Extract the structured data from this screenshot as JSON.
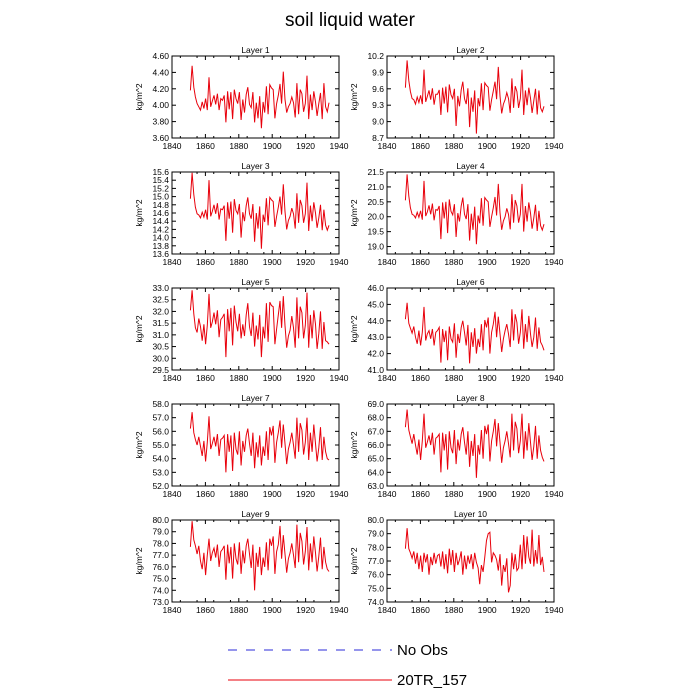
{
  "title": "soil liquid water",
  "colors": {
    "model": "#e8000b",
    "obs": "#2b2bd8",
    "axis": "#000000"
  },
  "legend": [
    {
      "label": "No Obs",
      "style": "dashed",
      "color": "#2b2bd8"
    },
    {
      "label": "20TR_157",
      "style": "solid",
      "color": "#e8000b"
    }
  ],
  "chart_data": [
    {
      "type": "line",
      "title": "Layer 1",
      "ylabel": "kg/m^2",
      "xlim": [
        1840,
        1940
      ],
      "xticks": [
        "1840",
        "1860",
        "1880",
        "1900",
        "1920",
        "1940"
      ],
      "ylim": [
        3.6,
        4.6
      ],
      "yticks": [
        "3.60",
        "3.80",
        "4.00",
        "4.20",
        "4.40",
        "4.60"
      ],
      "y_start": 4.18,
      "values": [
        4.18,
        4.48,
        4.22,
        4.1,
        4.02,
        3.98,
        3.94,
        4.04,
        3.96,
        4.08,
        3.94,
        4.34,
        3.98,
        4.05,
        4.12,
        4.01,
        4.14,
        3.94,
        4.08,
        4.06,
        4.12,
        3.79,
        4.17,
        3.95,
        4.16,
        3.83,
        4.19,
        4.08,
        4.02,
        4.16,
        3.82,
        4.07,
        3.91,
        4.13,
        4.22,
        4.01,
        3.97,
        4.16,
        3.79,
        4.03,
        3.84,
        4.11,
        3.72,
        4.04,
        3.91,
        4.23,
        3.89,
        4.25,
        4.21,
        4.19,
        3.84,
        4.02,
        4.12,
        4.26,
        4.02,
        4.41,
        4.07,
        3.91,
        3.98,
        4.02,
        4.1,
        4.03,
        3.85,
        4.27,
        3.89,
        4.19,
        4.14,
        3.92,
        4.02,
        4.36,
        3.83,
        4.13,
        3.94,
        4.17,
        4.04,
        3.87,
        4.02,
        4.15,
        3.83,
        4.27,
        3.98,
        3.92,
        4.03
      ]
    },
    {
      "type": "line",
      "title": "Layer 2",
      "ylabel": "kg/m^2",
      "xlim": [
        1840,
        1940
      ],
      "xticks": [
        "1840",
        "1860",
        "1880",
        "1900",
        "1920",
        "1940"
      ],
      "ylim": [
        8.7,
        10.2
      ],
      "yticks": [
        "8.7",
        "9.0",
        "9.3",
        "9.6",
        "9.9",
        "10.2"
      ],
      "y_start": 9.62,
      "values": [
        9.62,
        10.12,
        9.75,
        9.55,
        9.42,
        9.4,
        9.32,
        9.45,
        9.35,
        9.48,
        9.32,
        9.95,
        9.36,
        9.46,
        9.57,
        9.4,
        9.61,
        9.31,
        9.5,
        9.5,
        9.58,
        9.12,
        9.62,
        9.33,
        9.64,
        9.17,
        9.68,
        9.49,
        9.42,
        9.6,
        8.92,
        9.47,
        9.28,
        9.58,
        9.73,
        9.42,
        9.32,
        9.61,
        8.9,
        9.44,
        9.18,
        9.57,
        8.78,
        9.43,
        9.28,
        9.7,
        9.21,
        9.71,
        9.66,
        9.63,
        9.2,
        9.4,
        9.56,
        9.73,
        9.41,
        10.0,
        9.47,
        9.15,
        9.32,
        9.4,
        9.53,
        9.42,
        9.16,
        9.79,
        9.25,
        9.65,
        9.55,
        9.25,
        9.42,
        9.95,
        9.12,
        9.57,
        9.3,
        9.62,
        9.43,
        9.16,
        9.38,
        9.6,
        9.13,
        9.57,
        9.25,
        9.18,
        9.28
      ]
    },
    {
      "type": "line",
      "title": "Layer 3",
      "ylabel": "kg/m^2",
      "xlim": [
        1840,
        1940
      ],
      "xticks": [
        "1840",
        "1860",
        "1880",
        "1900",
        "1920",
        "1940"
      ],
      "ylim": [
        13.6,
        15.6
      ],
      "yticks": [
        "13.6",
        "13.8",
        "14.0",
        "14.2",
        "14.4",
        "14.6",
        "14.8",
        "15.0",
        "15.2",
        "15.4",
        "15.6"
      ],
      "y_start": 14.95,
      "values": [
        14.95,
        15.58,
        15.05,
        14.74,
        14.58,
        14.55,
        14.48,
        14.62,
        14.5,
        14.68,
        14.44,
        15.4,
        14.52,
        14.64,
        14.8,
        14.58,
        14.84,
        14.44,
        14.7,
        14.68,
        14.78,
        13.92,
        14.86,
        14.46,
        14.88,
        14.12,
        14.94,
        14.66,
        14.58,
        14.82,
        14.0,
        14.62,
        14.4,
        14.78,
        14.98,
        14.58,
        14.46,
        14.82,
        13.9,
        14.6,
        14.22,
        14.76,
        13.73,
        14.56,
        14.38,
        14.96,
        14.3,
        14.98,
        14.92,
        14.88,
        14.26,
        14.52,
        14.74,
        15.0,
        14.56,
        15.3,
        14.64,
        14.2,
        14.42,
        14.52,
        14.72,
        14.58,
        14.22,
        15.08,
        14.36,
        14.92,
        14.78,
        14.36,
        14.58,
        15.34,
        14.16,
        14.78,
        14.4,
        14.86,
        14.6,
        14.24,
        14.48,
        14.8,
        14.18,
        14.68,
        14.3,
        14.18,
        14.3
      ]
    },
    {
      "type": "line",
      "title": "Layer 4",
      "ylabel": "kg/m^2",
      "xlim": [
        1840,
        1940
      ],
      "xticks": [
        "1840",
        "1860",
        "1880",
        "1900",
        "1920",
        "1940"
      ],
      "ylim": [
        18.75,
        21.5
      ],
      "yticks": [
        "19.0",
        "19.5",
        "20.0",
        "20.5",
        "21.0",
        "21.5"
      ],
      "y_start": 20.55,
      "values": [
        20.55,
        21.42,
        20.7,
        20.3,
        20.08,
        20.05,
        19.96,
        20.15,
        19.98,
        20.2,
        19.9,
        21.2,
        20.02,
        20.16,
        20.38,
        20.08,
        20.44,
        19.88,
        20.24,
        20.22,
        20.36,
        19.25,
        20.48,
        19.94,
        20.5,
        19.45,
        20.58,
        20.18,
        20.06,
        20.42,
        19.32,
        20.12,
        19.84,
        20.36,
        20.64,
        20.08,
        19.92,
        20.42,
        19.2,
        20.1,
        19.56,
        20.34,
        19.08,
        20.04,
        19.78,
        20.62,
        19.7,
        20.64,
        20.56,
        20.5,
        19.66,
        20.0,
        20.3,
        20.66,
        20.04,
        21.1,
        20.14,
        19.56,
        19.86,
        20.0,
        20.28,
        20.08,
        19.58,
        20.76,
        19.8,
        20.56,
        20.36,
        19.8,
        20.08,
        21.1,
        19.5,
        20.36,
        19.84,
        20.48,
        20.12,
        19.6,
        19.96,
        20.4,
        19.52,
        20.2,
        19.7,
        19.55,
        19.75
      ]
    },
    {
      "type": "line",
      "title": "Layer 5",
      "ylabel": "kg/m^2",
      "xlim": [
        1840,
        1940
      ],
      "xticks": [
        "1840",
        "1860",
        "1880",
        "1900",
        "1920",
        "1940"
      ],
      "ylim": [
        29.5,
        33.0
      ],
      "yticks": [
        "29.5",
        "30.0",
        "30.5",
        "31.0",
        "31.5",
        "32.0",
        "32.5",
        "33.0"
      ],
      "y_start": 32.05,
      "values": [
        32.05,
        32.9,
        31.9,
        31.3,
        31.1,
        31.7,
        31.35,
        30.75,
        31.45,
        30.6,
        31.4,
        32.75,
        31.3,
        31.55,
        31.95,
        31.45,
        32.05,
        30.9,
        31.65,
        31.75,
        31.9,
        30.05,
        32.1,
        31.15,
        32.15,
        30.55,
        32.25,
        31.55,
        31.15,
        31.9,
        30.85,
        31.45,
        30.95,
        31.85,
        32.35,
        31.35,
        30.95,
        31.95,
        30.5,
        31.4,
        30.8,
        31.85,
        30.05,
        31.35,
        30.85,
        32.35,
        30.7,
        32.4,
        32.25,
        32.2,
        30.6,
        31.25,
        31.85,
        32.45,
        31.3,
        32.65,
        31.4,
        30.45,
        30.95,
        31.2,
        31.8,
        31.3,
        30.45,
        32.6,
        30.85,
        32.2,
        31.95,
        30.85,
        31.4,
        32.8,
        30.45,
        31.85,
        30.85,
        32.05,
        31.45,
        30.4,
        31.05,
        32.0,
        30.4,
        31.55,
        30.75,
        30.7,
        30.6
      ]
    },
    {
      "type": "line",
      "title": "Layer 6",
      "ylabel": "kg/m^2",
      "xlim": [
        1840,
        1940
      ],
      "xticks": [
        "1840",
        "1860",
        "1880",
        "1900",
        "1920",
        "1940"
      ],
      "ylim": [
        41.0,
        46.0
      ],
      "yticks": [
        "41.0",
        "42.0",
        "43.0",
        "44.0",
        "45.0",
        "46.0"
      ],
      "y_start": 44.1,
      "values": [
        44.1,
        45.1,
        43.85,
        43.55,
        43.25,
        43.65,
        43.0,
        42.6,
        43.4,
        42.5,
        43.3,
        44.85,
        42.8,
        43.2,
        43.4,
        42.9,
        43.5,
        42.5,
        43.3,
        43.4,
        43.6,
        41.45,
        43.5,
        42.7,
        43.4,
        41.6,
        43.65,
        42.9,
        42.7,
        43.85,
        41.75,
        43.2,
        42.65,
        43.6,
        44.0,
        43.3,
        42.5,
        43.75,
        41.4,
        43.3,
        42.4,
        43.55,
        42.0,
        42.9,
        42.4,
        43.8,
        42.2,
        44.05,
        43.6,
        44.2,
        42.0,
        43.3,
        43.8,
        44.55,
        43.0,
        44.25,
        43.2,
        42.1,
        42.9,
        43.4,
        43.8,
        43.2,
        42.4,
        44.7,
        42.8,
        44.4,
        43.9,
        42.6,
        43.3,
        44.7,
        42.3,
        43.8,
        42.7,
        44.3,
        43.2,
        42.4,
        43.0,
        44.2,
        42.3,
        43.6,
        42.7,
        42.5,
        42.2
      ]
    },
    {
      "type": "line",
      "title": "Layer 7",
      "ylabel": "kg/m^2",
      "xlim": [
        1840,
        1940
      ],
      "xticks": [
        "1840",
        "1860",
        "1880",
        "1900",
        "1920",
        "1940"
      ],
      "ylim": [
        52.0,
        58.0
      ],
      "yticks": [
        "52.0",
        "53.0",
        "54.0",
        "55.0",
        "56.0",
        "57.0",
        "58.0"
      ],
      "y_start": 56.2,
      "values": [
        56.2,
        57.4,
        55.9,
        55.4,
        55.0,
        55.6,
        54.9,
        54.2,
        55.3,
        53.8,
        55.2,
        57.1,
        54.7,
        55.1,
        55.6,
        54.9,
        55.8,
        54.2,
        55.4,
        55.5,
        55.7,
        53.0,
        55.8,
        54.5,
        55.7,
        53.1,
        55.9,
        54.7,
        54.3,
        56.0,
        53.5,
        55.3,
        54.5,
        55.7,
        56.2,
        55.1,
        54.2,
        55.9,
        53.3,
        55.2,
        54.1,
        55.7,
        53.5,
        54.9,
        54.2,
        56.0,
        53.9,
        56.3,
        55.7,
        56.4,
        53.7,
        55.2,
        55.9,
        56.8,
        54.8,
        56.5,
        55.1,
        53.6,
        54.7,
        55.2,
        55.9,
        55.0,
        54.0,
        57.0,
        54.5,
        56.6,
        56.1,
        54.3,
        55.2,
        57.0,
        53.9,
        55.9,
        54.5,
        56.5,
        55.1,
        53.8,
        54.8,
        56.3,
        53.9,
        55.6,
        54.5,
        54.0,
        53.9
      ]
    },
    {
      "type": "line",
      "title": "Layer 8",
      "ylabel": "kg/m^2",
      "xlim": [
        1840,
        1940
      ],
      "xticks": [
        "1840",
        "1860",
        "1880",
        "1900",
        "1920",
        "1940"
      ],
      "ylim": [
        63.0,
        69.0
      ],
      "yticks": [
        "63.0",
        "64.0",
        "65.0",
        "66.0",
        "67.0",
        "68.0",
        "69.0"
      ],
      "y_start": 67.3,
      "values": [
        67.3,
        68.6,
        67.1,
        66.6,
        66.1,
        66.8,
        66.0,
        65.3,
        66.4,
        64.9,
        66.3,
        68.3,
        65.8,
        66.2,
        66.7,
        66.0,
        66.9,
        65.3,
        66.5,
        66.6,
        66.8,
        64.0,
        66.9,
        65.6,
        66.8,
        64.2,
        67.0,
        65.8,
        65.4,
        67.1,
        64.6,
        66.4,
        65.6,
        66.8,
        67.3,
        66.2,
        65.3,
        67.0,
        64.4,
        66.3,
        65.2,
        66.8,
        63.6,
        66.0,
        65.3,
        67.1,
        65.0,
        67.4,
        66.8,
        67.5,
        64.8,
        66.3,
        67.0,
        67.9,
        65.9,
        67.6,
        66.2,
        64.7,
        65.8,
        66.3,
        67.0,
        66.1,
        65.1,
        68.3,
        65.6,
        67.7,
        67.2,
        65.4,
        66.3,
        68.3,
        65.0,
        67.0,
        65.6,
        67.6,
        66.2,
        64.9,
        65.9,
        67.4,
        65.0,
        66.7,
        65.6,
        65.1,
        64.8
      ]
    },
    {
      "type": "line",
      "title": "Layer 9",
      "ylabel": "kg/m^2",
      "xlim": [
        1840,
        1940
      ],
      "xticks": [
        "1840",
        "1860",
        "1880",
        "1900",
        "1920",
        "1940"
      ],
      "ylim": [
        73.0,
        80.0
      ],
      "yticks": [
        "73.0",
        "74.0",
        "75.0",
        "76.0",
        "77.0",
        "78.0",
        "79.0",
        "80.0"
      ],
      "y_start": 77.7,
      "values": [
        77.7,
        79.9,
        78.3,
        77.8,
        77.1,
        77.8,
        76.5,
        75.8,
        77.2,
        75.3,
        77.0,
        78.4,
        76.5,
        77.2,
        77.6,
        76.8,
        77.9,
        76.0,
        77.3,
        77.5,
        77.8,
        74.9,
        77.9,
        76.3,
        77.7,
        75.0,
        78.0,
        76.7,
        76.2,
        78.1,
        75.4,
        77.4,
        76.3,
        77.8,
        78.4,
        77.1,
        75.9,
        77.9,
        74.0,
        77.2,
        76.0,
        77.7,
        75.3,
        76.8,
        76.0,
        78.1,
        75.7,
        78.4,
        77.8,
        78.6,
        75.4,
        77.3,
        77.9,
        79.5,
        76.7,
        78.7,
        77.1,
        75.5,
        76.7,
        77.2,
        78.0,
        77.0,
        75.9,
        79.6,
        76.4,
        78.9,
        78.2,
        76.2,
        77.3,
        79.4,
        75.7,
        78.0,
        76.4,
        78.6,
        77.2,
        75.6,
        76.9,
        78.5,
        75.8,
        77.7,
        76.4,
        75.8,
        75.6
      ]
    },
    {
      "type": "line",
      "title": "Layer 10",
      "ylabel": "kg/m^2",
      "xlim": [
        1840,
        1940
      ],
      "xticks": [
        "1840",
        "1860",
        "1880",
        "1900",
        "1920",
        "1940"
      ],
      "ylim": [
        74.0,
        80.0
      ],
      "yticks": [
        "74.0",
        "75.0",
        "76.0",
        "77.0",
        "78.0",
        "79.0",
        "80.0"
      ],
      "y_start": 77.9,
      "values": [
        77.9,
        79.4,
        77.9,
        77.6,
        77.2,
        77.7,
        76.8,
        77.6,
        76.4,
        77.4,
        76.2,
        77.6,
        76.9,
        77.5,
        76.0,
        77.3,
        76.7,
        77.6,
        76.8,
        77.4,
        77.5,
        76.6,
        77.7,
        76.4,
        77.5,
        76.1,
        77.9,
        76.7,
        77.8,
        76.2,
        77.6,
        76.7,
        77.1,
        77.7,
        76.0,
        77.4,
        76.4,
        77.4,
        76.8,
        77.5,
        76.4,
        77.6,
        76.9,
        76.5,
        75.3,
        76.7,
        76.2,
        77.3,
        78.5,
        79.0,
        79.1,
        76.9,
        77.6,
        77.4,
        77.1,
        76.3,
        77.5,
        75.2,
        76.7,
        76.2,
        77.2,
        74.7,
        75.2,
        77.6,
        76.4,
        77.5,
        76.3,
        76.5,
        78.2,
        76.4,
        78.9,
        76.8,
        78.8,
        77.3,
        76.8,
        79.3,
        76.6,
        77.8,
        76.8,
        78.9,
        76.7,
        77.3,
        76.2
      ]
    }
  ]
}
